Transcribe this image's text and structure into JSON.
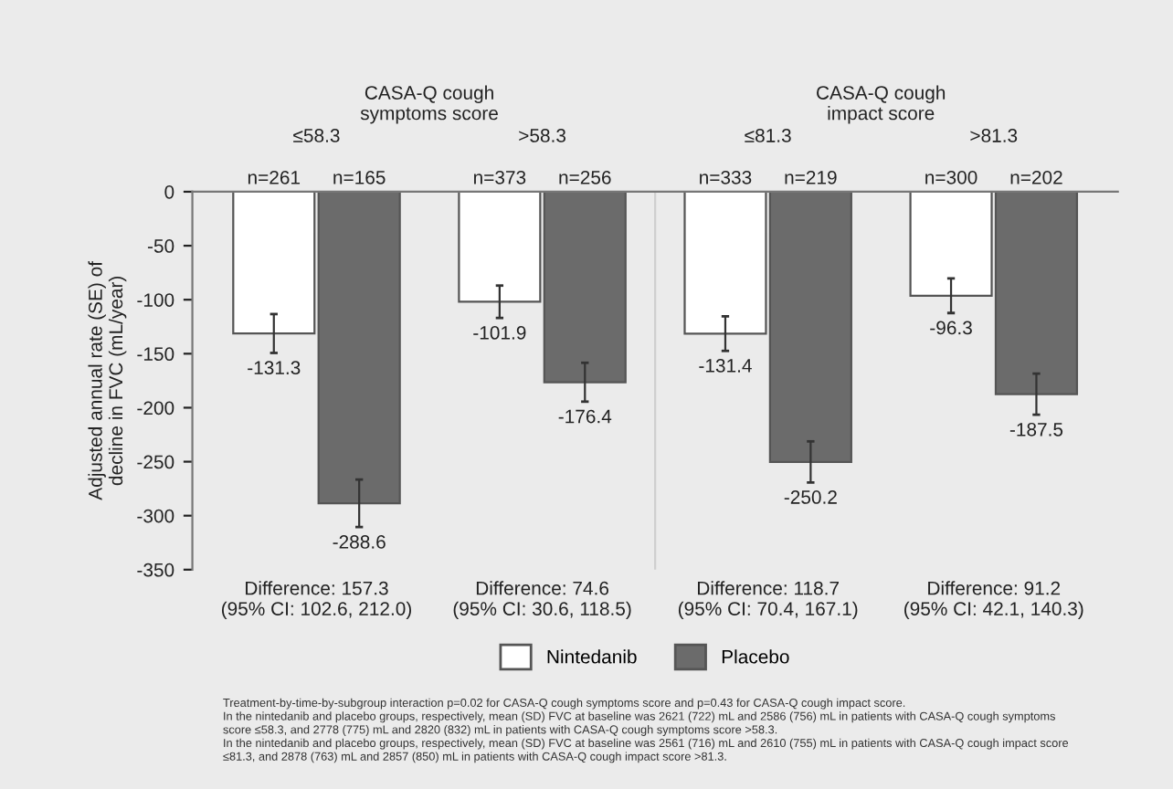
{
  "chart_data": {
    "type": "bar",
    "ylabel": "Adjusted annual rate (SE) of\ndecline in FVC (mL/year)",
    "categories": [
      "≤58.3",
      ">58.3",
      "≤81.3",
      ">81.3"
    ],
    "series": [
      {
        "name": "Nintedanib",
        "color": "#ffffff",
        "values": [
          -131.3,
          -101.9,
          -131.4,
          -96.3
        ],
        "errors": [
          18,
          15,
          16,
          16
        ]
      },
      {
        "name": "Placebo",
        "color": "#6b6b6b",
        "values": [
          -288.6,
          -176.4,
          -250.2,
          -187.5
        ],
        "errors": [
          22,
          18,
          19,
          19
        ]
      }
    ],
    "ylim": [
      -350,
      0
    ],
    "yticks": [
      0,
      -50,
      -100,
      -150,
      -200,
      -250,
      -300,
      -350
    ],
    "data_labels": true,
    "legend": "bottom",
    "grid": false,
    "annotations": [
      "CASA-Q cough\nsymptoms score",
      "CASA-Q cough\nimpact score",
      "n=261",
      "n=165",
      "n=373",
      "n=256",
      "n=333",
      "n=219",
      "n=300",
      "n=202",
      "Difference: 157.3\n(95% CI: 102.6, 212.0)",
      "Difference: 74.6\n(95% CI: 30.6, 118.5)",
      "Difference: 118.7\n(95% CI: 70.4, 167.1)",
      "Difference: 91.2\n(95% CI: 42.1, 140.3)",
      "Treatment-by-time-by-subgroup interaction p=0.02 for CASA-Q cough symptoms score and p=0.43 for CASA-Q cough impact score.",
      "In the nintedanib and placebo groups, respectively, mean (SD) FVC at baseline was 2621 (722) mL and 2586 (756) mL in patients with CASA-Q cough symptoms\nscore ≤58.3, and 2778 (775) mL and 2820 (832) mL in patients with CASA-Q cough symptoms score >58.3.",
      "In the nintedanib and placebo groups, respectively, mean (SD) FVC at baseline was 2561 (716) mL and 2610 (755) mL in patients with CASA-Q cough impact score\n≤81.3, and 2878 (763) mL and 2857 (850) mL in patients with CASA-Q cough impact score >81.3."
    ]
  }
}
